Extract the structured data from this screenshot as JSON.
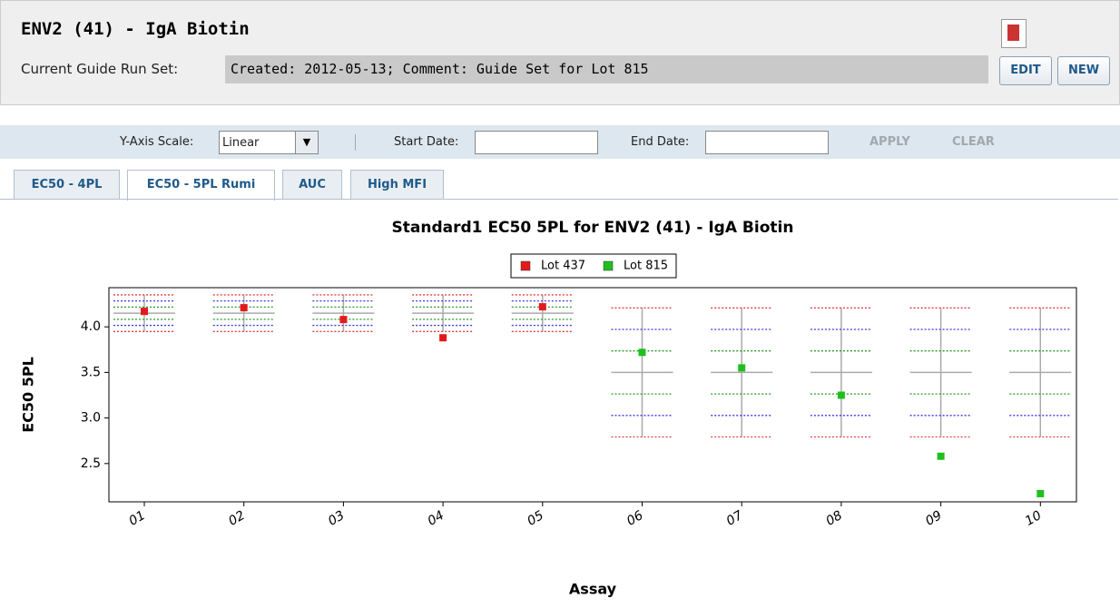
{
  "header": {
    "title": "ENV2 (41) - IgA Biotin",
    "guide_label": "Current Guide Run Set:",
    "guide_value": "Created: 2012-05-13; Comment: Guide Set for Lot 815",
    "buttons": [
      "EDIT",
      "NEW"
    ]
  },
  "toolbar": {
    "y_scale_label": "Y-Axis Scale:",
    "y_scale_value": "Linear",
    "start_label": "Start Date:",
    "end_label": "End Date:",
    "buttons": [
      "APPLY",
      "CLEAR"
    ]
  },
  "tabs": [
    "EC50 - 4PL",
    "EC50 - 5PL Rumi",
    "AUC",
    "High MFI"
  ],
  "active_tab": 1,
  "chart_data": {
    "type": "scatter",
    "title": "Standard1 EC50 5PL for ENV2 (41) - IgA Biotin",
    "x_label": "Assay",
    "y_label": "EC50 5PL",
    "categories": [
      "01",
      "02",
      "03",
      "04",
      "05",
      "06",
      "07",
      "08",
      "09",
      "10"
    ],
    "series": [
      {
        "name": "Lot 437",
        "color": "#e31a1c",
        "values": [
          4.17,
          4.21,
          4.08,
          3.88,
          4.22,
          null,
          null,
          null,
          null,
          null
        ]
      },
      {
        "name": "Lot 815",
        "color": "#1fbf1f",
        "values": [
          null,
          null,
          null,
          null,
          null,
          3.72,
          3.55,
          3.25,
          2.58,
          2.17
        ]
      }
    ],
    "guide": {
      "mean": [
        4.15,
        4.15,
        4.15,
        4.15,
        4.15,
        3.5,
        3.5,
        3.5,
        3.5,
        3.5
      ],
      "sd": [
        0.067,
        0.067,
        0.067,
        0.067,
        0.067,
        0.236,
        0.236,
        0.236,
        0.236,
        0.236
      ],
      "sd_colors": [
        "#2a9a2a",
        "#3a3ae0",
        "#e04040"
      ],
      "mean_color": "#aaaaaa"
    },
    "ylim": [
      2.08,
      4.43
    ],
    "yticks": [
      2.5,
      {
        "value": 3,
        "label": "3.0"
      },
      3.5,
      {
        "value": 4,
        "label": "4.0"
      }
    ],
    "legend": "top"
  }
}
